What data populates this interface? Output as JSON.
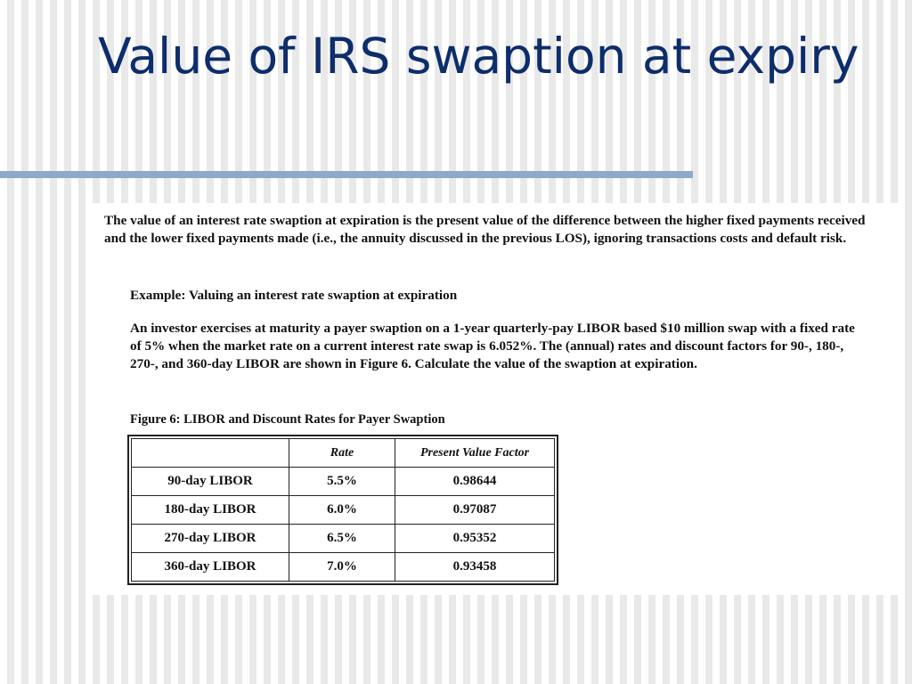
{
  "slide": {
    "title": "Value of IRS swaption at expiry"
  },
  "document": {
    "intro": "The value of an interest rate swaption at expiration is the present value of the difference between the higher fixed payments received and the lower fixed payments made (i.e., the annuity discussed in the previous LOS), ignoring transactions costs and default risk.",
    "example_title": "Example: Valuing an interest rate swaption at expiration",
    "example_body": "An investor exercises at maturity a payer swaption on a 1-year quarterly-pay LIBOR based $10 million swap with a fixed rate of 5% when the market rate on a current interest rate swap is 6.052%. The (annual) rates and discount factors for 90-, 180-, 270-, and 360-day LIBOR are shown in Figure 6. Calculate the value of the swaption at expiration.",
    "figure_caption": "Figure 6: LIBOR and Discount Rates for Payer Swaption"
  },
  "table": {
    "headers": [
      "",
      "Rate",
      "Present Value Factor"
    ],
    "rows": [
      [
        "90-day LIBOR",
        "5.5%",
        "0.98644"
      ],
      [
        "180-day LIBOR",
        "6.0%",
        "0.97087"
      ],
      [
        "270-day LIBOR",
        "6.5%",
        "0.95352"
      ],
      [
        "360-day LIBOR",
        "7.0%",
        "0.93458"
      ]
    ]
  }
}
